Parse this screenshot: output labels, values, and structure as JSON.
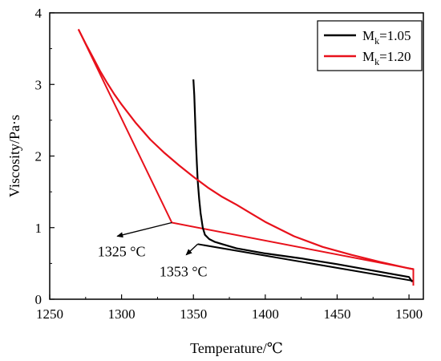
{
  "chart_data": {
    "type": "line",
    "xlabel": "Temperature/℃",
    "ylabel": "Viscosity/Pa·s",
    "xlim": [
      1250,
      1510
    ],
    "ylim": [
      0,
      4
    ],
    "xticks": [
      1250,
      1300,
      1350,
      1400,
      1450,
      1500
    ],
    "yticks": [
      0,
      1,
      2,
      3,
      4
    ],
    "legend_position": "top-right",
    "legend": [
      {
        "base": "M",
        "sub": "k",
        "value": "=1.05",
        "color": "#000000"
      },
      {
        "base": "M",
        "sub": "k",
        "value": "=1.20",
        "color": "#e8111b"
      }
    ],
    "series": [
      {
        "color": "#000000",
        "x": [
          1350,
          1350.6,
          1351.2,
          1351.8,
          1352.4,
          1353,
          1354,
          1355,
          1356.5,
          1358,
          1361,
          1365,
          1370,
          1380,
          1400,
          1425,
          1450,
          1475,
          1500,
          1502
        ],
        "y": [
          3.07,
          2.85,
          2.5,
          2.15,
          1.9,
          1.65,
          1.4,
          1.2,
          1.0,
          0.9,
          0.84,
          0.8,
          0.77,
          0.71,
          0.64,
          0.57,
          0.49,
          0.4,
          0.31,
          0.25
        ]
      },
      {
        "color": "#e8111b",
        "x": [
          1270,
          1275,
          1280,
          1285,
          1290,
          1295,
          1300,
          1310,
          1320,
          1330,
          1340,
          1350,
          1360,
          1370,
          1380,
          1390,
          1400,
          1420,
          1440,
          1460,
          1480,
          1500,
          1503
        ],
        "y": [
          3.77,
          3.57,
          3.38,
          3.19,
          3.02,
          2.86,
          2.72,
          2.46,
          2.23,
          2.04,
          1.87,
          1.71,
          1.56,
          1.43,
          1.32,
          1.2,
          1.08,
          0.88,
          0.73,
          0.62,
          0.52,
          0.43,
          0.42
        ]
      }
    ],
    "transition_lines": [
      {
        "color": "#000000",
        "x": [
          1353,
          1502,
          1502
        ],
        "y": [
          0.77,
          0.26,
          0.24
        ]
      },
      {
        "color": "#e8111b",
        "x": [
          1270,
          1335,
          1503,
          1503
        ],
        "y": [
          3.77,
          1.07,
          0.42,
          0.19
        ]
      }
    ],
    "annotations": [
      {
        "text": "1325 °C",
        "arrow_from": [
          1335,
          1.07
        ],
        "arrow_to": [
          1297,
          0.88
        ],
        "label_at": [
          1300,
          0.6
        ]
      },
      {
        "text": "1353 °C",
        "arrow_from": [
          1353,
          0.77
        ],
        "arrow_to": [
          1345,
          0.62
        ],
        "label_at": [
          1343,
          0.32
        ]
      }
    ]
  }
}
